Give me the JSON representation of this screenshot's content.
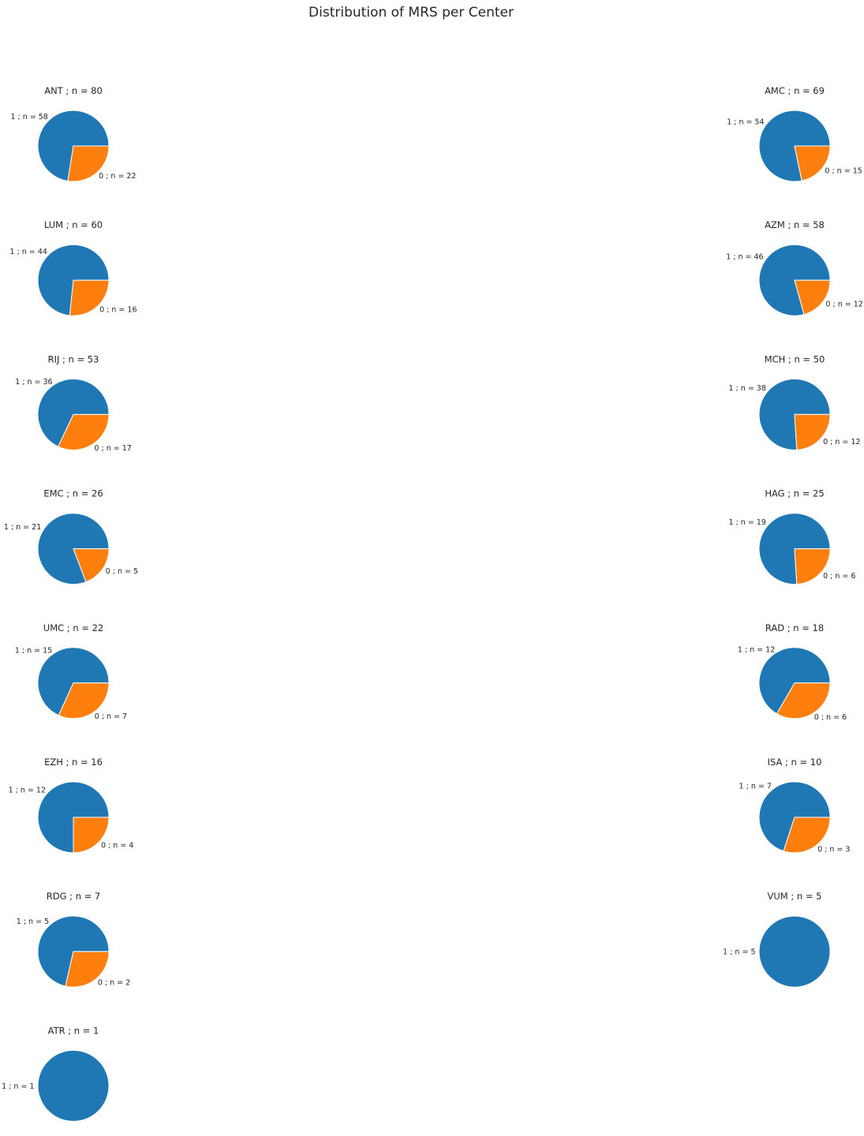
{
  "chart_data": {
    "type": "pie",
    "title": "Distribution of MRS per Center",
    "colors": {
      "1": "#1f77b4",
      "0": "#ff7f0e"
    },
    "start_angle_deg": 0,
    "direction": "counterclockwise",
    "charts": [
      {
        "title": "ANT ; n = 80",
        "slices": [
          {
            "category": "1",
            "label": "1 ; n = 58",
            "value": 58
          },
          {
            "category": "0",
            "label": "0 ; n = 22",
            "value": 22
          }
        ]
      },
      {
        "title": "AMC ; n = 69",
        "slices": [
          {
            "category": "1",
            "label": "1 ; n = 54",
            "value": 54
          },
          {
            "category": "0",
            "label": "0 ; n = 15",
            "value": 15
          }
        ]
      },
      {
        "title": "LUM ; n = 60",
        "slices": [
          {
            "category": "1",
            "label": "1 ; n = 44",
            "value": 44
          },
          {
            "category": "0",
            "label": "0 ; n = 16",
            "value": 16
          }
        ]
      },
      {
        "title": "AZM ; n = 58",
        "slices": [
          {
            "category": "1",
            "label": "1 ; n = 46",
            "value": 46
          },
          {
            "category": "0",
            "label": "0 ; n = 12",
            "value": 12
          }
        ]
      },
      {
        "title": "RIJ ; n = 53",
        "slices": [
          {
            "category": "1",
            "label": "1 ; n = 36",
            "value": 36
          },
          {
            "category": "0",
            "label": "0 ; n = 17",
            "value": 17
          }
        ]
      },
      {
        "title": "MCH ; n = 50",
        "slices": [
          {
            "category": "1",
            "label": "1 ; n = 38",
            "value": 38
          },
          {
            "category": "0",
            "label": "0 ; n = 12",
            "value": 12
          }
        ]
      },
      {
        "title": "EMC ; n = 26",
        "slices": [
          {
            "category": "1",
            "label": "1 ; n = 21",
            "value": 21
          },
          {
            "category": "0",
            "label": "0 ; n = 5",
            "value": 5
          }
        ]
      },
      {
        "title": "HAG ; n = 25",
        "slices": [
          {
            "category": "1",
            "label": "1 ; n = 19",
            "value": 19
          },
          {
            "category": "0",
            "label": "0 ; n = 6",
            "value": 6
          }
        ]
      },
      {
        "title": "UMC ; n = 22",
        "slices": [
          {
            "category": "1",
            "label": "1 ; n = 15",
            "value": 15
          },
          {
            "category": "0",
            "label": "0 ; n = 7",
            "value": 7
          }
        ]
      },
      {
        "title": "RAD ; n = 18",
        "slices": [
          {
            "category": "1",
            "label": "1 ; n = 12",
            "value": 12
          },
          {
            "category": "0",
            "label": "0 ; n = 6",
            "value": 6
          }
        ]
      },
      {
        "title": "EZH ; n = 16",
        "slices": [
          {
            "category": "1",
            "label": "1 ; n = 12",
            "value": 12
          },
          {
            "category": "0",
            "label": "0 ; n = 4",
            "value": 4
          }
        ]
      },
      {
        "title": "ISA ; n = 10",
        "slices": [
          {
            "category": "1",
            "label": "1 ; n = 7",
            "value": 7
          },
          {
            "category": "0",
            "label": "0 ; n = 3",
            "value": 3
          }
        ]
      },
      {
        "title": "RDG ; n = 7",
        "slices": [
          {
            "category": "1",
            "label": "1 ; n = 5",
            "value": 5
          },
          {
            "category": "0",
            "label": "0 ; n = 2",
            "value": 2
          }
        ]
      },
      {
        "title": "VUM ; n = 5",
        "slices": [
          {
            "category": "1",
            "label": "1 ; n = 5",
            "value": 5
          }
        ]
      },
      {
        "title": "ATR ; n = 1",
        "slices": [
          {
            "category": "1",
            "label": "1 ; n = 1",
            "value": 1
          }
        ]
      }
    ]
  }
}
